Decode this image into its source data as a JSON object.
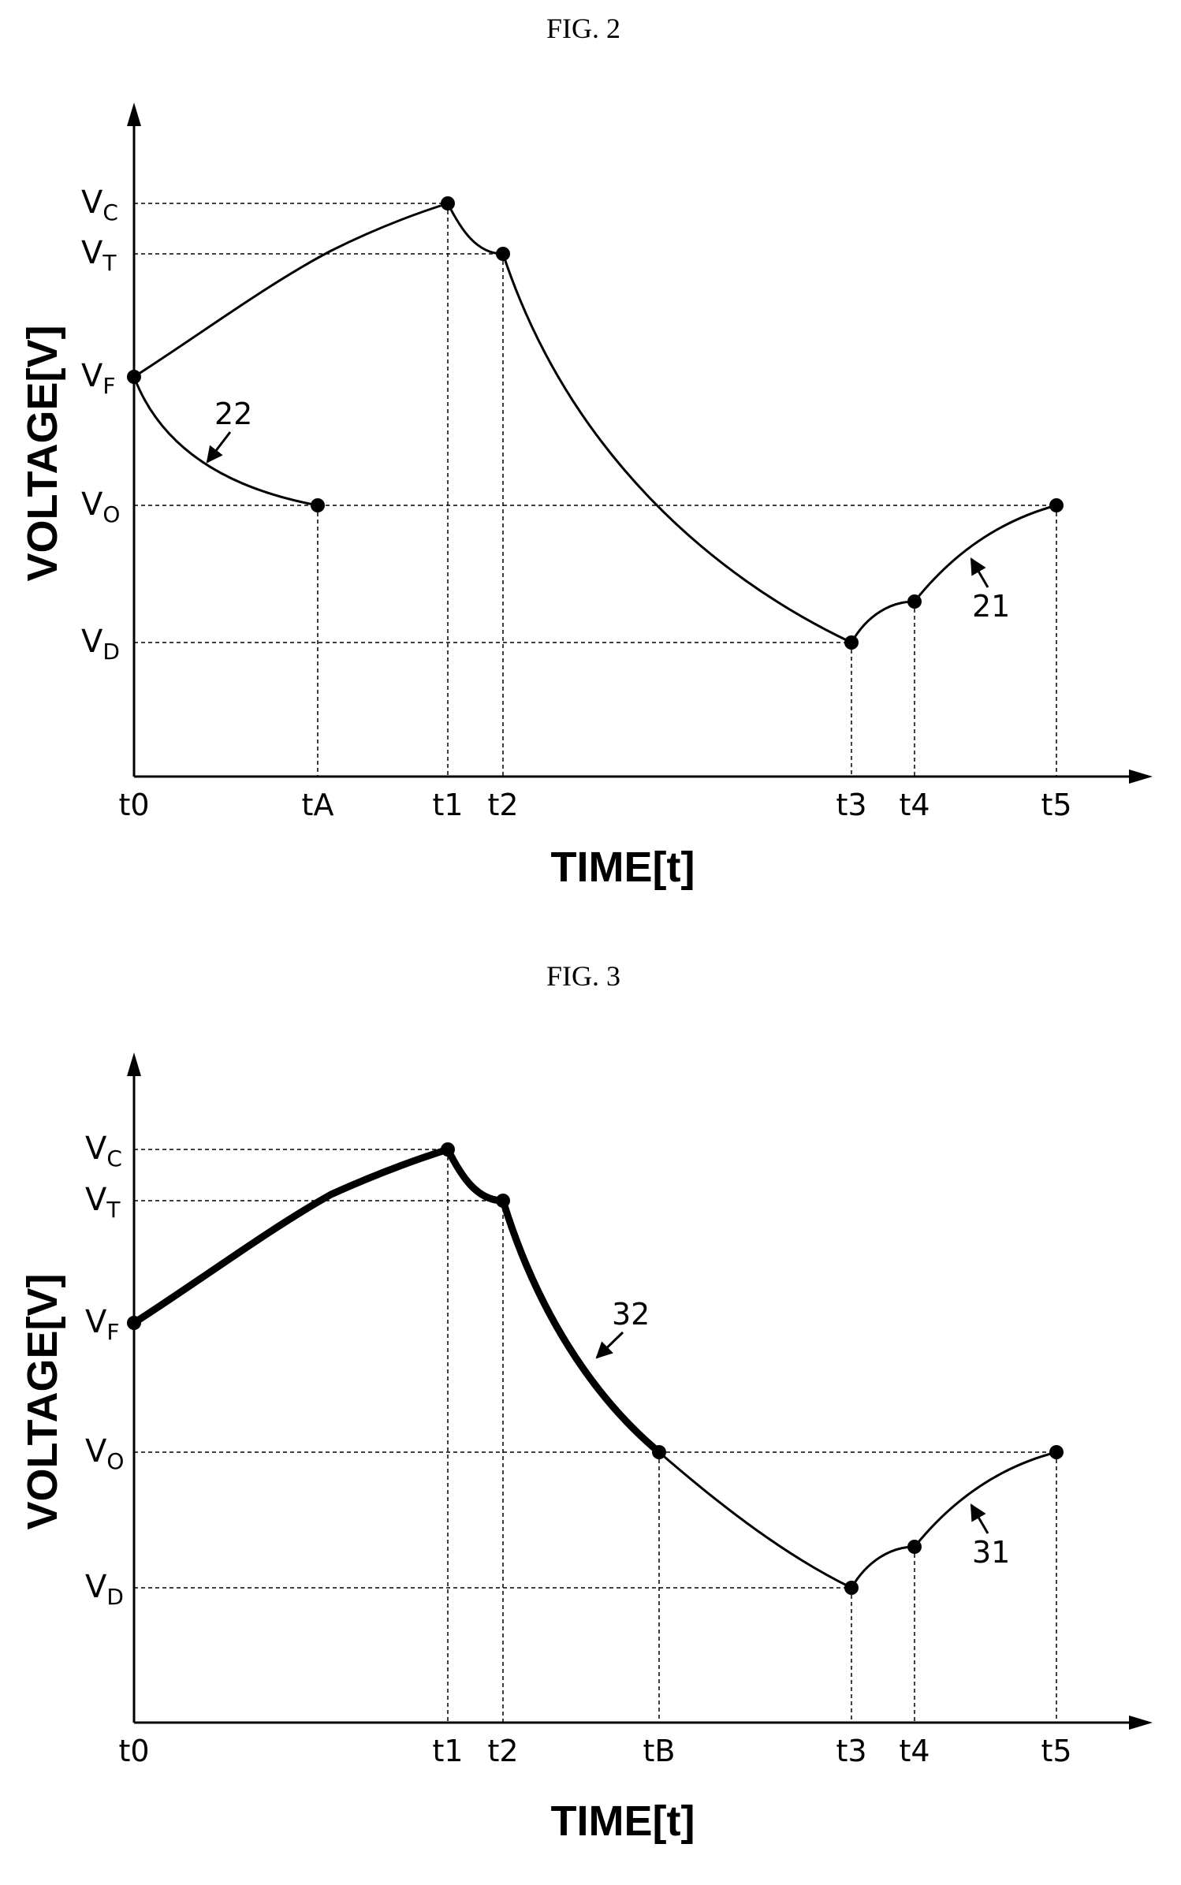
{
  "figures": [
    {
      "title": "FIG. 2",
      "y_axis_title": "VOLTAGE[V]",
      "x_axis_title": "TIME[t]",
      "x_ticks": [
        {
          "id": "t0",
          "label": "t0"
        },
        {
          "id": "tA",
          "label": "tA"
        },
        {
          "id": "t1",
          "label": "t1"
        },
        {
          "id": "t2",
          "label": "t2"
        },
        {
          "id": "t3",
          "label": "t3"
        },
        {
          "id": "t4",
          "label": "t4"
        },
        {
          "id": "t5",
          "label": "t5"
        }
      ],
      "y_levels": [
        {
          "id": "VC",
          "main": "V",
          "sub": "C"
        },
        {
          "id": "VT",
          "main": "V",
          "sub": "T"
        },
        {
          "id": "VF",
          "main": "V",
          "sub": "F"
        },
        {
          "id": "VO",
          "main": "V",
          "sub": "O"
        },
        {
          "id": "VD",
          "main": "V",
          "sub": "D"
        }
      ],
      "curves": [
        {
          "ref": "21",
          "bold_until": null,
          "points": [
            [
              "t0",
              "VF"
            ],
            [
              "t1",
              "VC"
            ],
            [
              "t2",
              "VT"
            ],
            [
              "t3",
              "VD"
            ],
            [
              "t4",
              ""
            ],
            [
              "t5",
              "VO"
            ]
          ]
        },
        {
          "ref": "22",
          "bold_until": null,
          "points": [
            [
              "t0",
              "VF"
            ],
            [
              "tA",
              "VO"
            ]
          ]
        }
      ],
      "reference_labels": [
        "22",
        "21"
      ]
    },
    {
      "title": "FIG. 3",
      "y_axis_title": "VOLTAGE[V]",
      "x_axis_title": "TIME[t]",
      "x_ticks": [
        {
          "id": "t0",
          "label": "t0"
        },
        {
          "id": "t1",
          "label": "t1"
        },
        {
          "id": "t2",
          "label": "t2"
        },
        {
          "id": "tB",
          "label": "tB"
        },
        {
          "id": "t3",
          "label": "t3"
        },
        {
          "id": "t4",
          "label": "t4"
        },
        {
          "id": "t5",
          "label": "t5"
        }
      ],
      "y_levels": [
        {
          "id": "VC",
          "main": "V",
          "sub": "C"
        },
        {
          "id": "VT",
          "main": "V",
          "sub": "T"
        },
        {
          "id": "VF",
          "main": "V",
          "sub": "F"
        },
        {
          "id": "VO",
          "main": "V",
          "sub": "O"
        },
        {
          "id": "VD",
          "main": "V",
          "sub": "D"
        }
      ],
      "curves": [
        {
          "ref": "31",
          "points": [
            [
              "t0",
              "VF"
            ],
            [
              "t1",
              "VC"
            ],
            [
              "t2",
              "VT"
            ],
            [
              "tB",
              "VO"
            ],
            [
              "t3",
              "VD"
            ],
            [
              "t4",
              ""
            ],
            [
              "t5",
              "VO"
            ]
          ]
        },
        {
          "ref": "32",
          "points": [
            [
              "t0",
              "VF"
            ],
            [
              "t1",
              "VC"
            ],
            [
              "t2",
              "VT"
            ],
            [
              "tB",
              "VO"
            ]
          ],
          "emphasis": "bold"
        }
      ],
      "reference_labels": [
        "32",
        "31"
      ]
    }
  ]
}
